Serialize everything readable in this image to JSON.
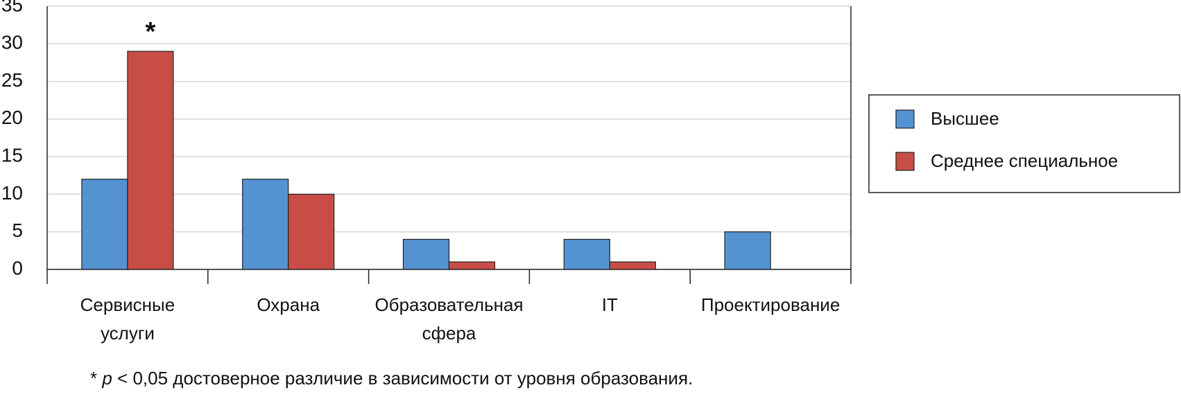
{
  "chart_data": {
    "type": "bar",
    "categories": [
      "Сервисные\nуслуги",
      "Охрана",
      "Образовательная\nсфера",
      "IT",
      "Проектирование"
    ],
    "series": [
      {
        "name": "Высшее",
        "color": "#5592d2",
        "values": [
          12,
          12,
          4,
          4,
          5
        ]
      },
      {
        "name": "Среднее специальное",
        "color": "#c94d47",
        "values": [
          29,
          10,
          1,
          1,
          0
        ]
      }
    ],
    "ylim": [
      0,
      35
    ],
    "yticks": [
      0,
      5,
      10,
      15,
      20,
      25,
      30,
      35
    ],
    "grid": true,
    "legend": "right",
    "annotations": [
      {
        "text": "*",
        "series": 1,
        "index": 0
      }
    ],
    "footnote": [
      "* ",
      "p",
      " < 0,05 достоверное различие в зависимости от уровня образования."
    ]
  }
}
